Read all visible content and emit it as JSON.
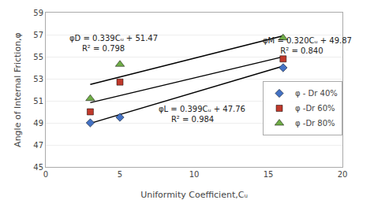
{
  "chart_data": {
    "type": "scatter",
    "xlabel": "Uniformity Coefficient,Cᵤ",
    "ylabel": "Angle of Internal Friction,φ",
    "series": [
      {
        "type": "line",
        "color": "black",
        "line_style": "solid",
        "x": [
          3,
          16
        ],
        "values": [
          48.957,
          54.144
        ]
      },
      {
        "type": "line",
        "color": "black",
        "line_style": "solid",
        "x": [
          3,
          16
        ],
        "values": [
          52.487,
          56.894
        ]
      },
      {
        "type": "line",
        "color": "black",
        "line_style": "solid",
        "x": [
          3,
          16
        ],
        "values": [
          50.83,
          54.99
        ]
      },
      {
        "name": "φ - Dr 40%",
        "type": "scatter",
        "color": "#4472C4",
        "marker": "diamond",
        "x": [
          3,
          5,
          16
        ],
        "values": [
          49.0,
          49.5,
          54.0
        ]
      },
      {
        "name": "φ -Dr 60%",
        "type": "scatter",
        "color": "#C0392B",
        "marker": "square",
        "x": [
          3,
          5,
          16
        ],
        "values": [
          50.0,
          52.7,
          54.8
        ]
      },
      {
        "name": "φ -Dr 80%",
        "type": "scatter",
        "color": "#70AD47",
        "marker": "triangle-up",
        "x": [
          3,
          5,
          16
        ],
        "values": [
          51.2,
          54.3,
          56.7
        ]
      }
    ],
    "annotations": [
      {
        "text": "φD = 0.339Cᵤ + 51.47\n     R² = 0.798",
        "x": 1.5,
        "y": 57.2
      },
      {
        "text": "φL = 0.399Cᵤ + 47.76\n     R² = 0.984",
        "x": 7.5,
        "y": 50.8
      },
      {
        "text": "φM = 0.320Cᵤ + 49.87\n       R² = 0.840",
        "x": 14.5,
        "y": 57.0
      }
    ],
    "xlim": [
      0,
      20
    ],
    "ylim": [
      45,
      59
    ],
    "xticks": [
      0,
      5,
      10,
      15,
      20
    ],
    "yticks": [
      45,
      47,
      49,
      51,
      53,
      55,
      57,
      59
    ],
    "grid": "y",
    "legend": "right"
  }
}
